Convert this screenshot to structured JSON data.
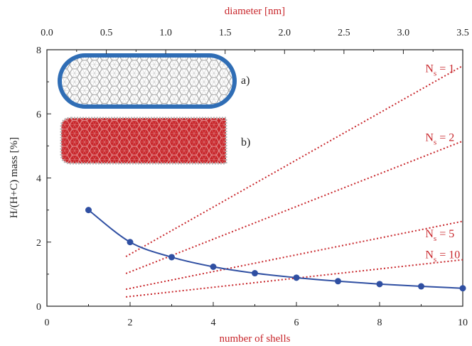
{
  "chart_data": {
    "type": "line",
    "xlabel": "number of shells",
    "ylabel": "H/(H+C) mass [%]",
    "x2label": "diameter [nm]",
    "xlim": [
      0,
      10
    ],
    "ylim": [
      0,
      8
    ],
    "x2lim": [
      0,
      3.5
    ],
    "xticks": [
      "0",
      "2",
      "4",
      "6",
      "8",
      "10"
    ],
    "yticks": [
      "0",
      "2",
      "4",
      "6",
      "8"
    ],
    "x2ticks": [
      "0.0",
      "0.5",
      "1.0",
      "1.5",
      "2.0",
      "2.5",
      "3.0",
      "3.5"
    ],
    "grid": false,
    "series": [
      {
        "name": "",
        "style": "solid-with-markers",
        "color": "#2f4fa2",
        "x": [
          1,
          2,
          3,
          4,
          5,
          6,
          7,
          8,
          9,
          10
        ],
        "y": [
          3.0,
          2.0,
          1.53,
          1.23,
          1.03,
          0.89,
          0.78,
          0.69,
          0.62,
          0.56
        ]
      },
      {
        "name": "Ns = 1",
        "style": "dotted",
        "color": "#c8262b",
        "x": [
          1.9,
          10
        ],
        "y": [
          1.55,
          7.5
        ]
      },
      {
        "name": "Ns = 2",
        "style": "dotted",
        "color": "#c8262b",
        "x": [
          1.9,
          10
        ],
        "y": [
          1.02,
          5.15
        ]
      },
      {
        "name": "Ns = 5",
        "style": "dotted",
        "color": "#c8262b",
        "x": [
          1.9,
          10
        ],
        "y": [
          0.53,
          2.65
        ]
      },
      {
        "name": "Ns = 10",
        "style": "dotted",
        "color": "#c8262b",
        "x": [
          1.9,
          10
        ],
        "y": [
          0.29,
          1.45
        ]
      }
    ],
    "annotations": [
      {
        "base": "N",
        "sub": "s",
        "rest": " = 1",
        "x": 9.1,
        "y": 7.3
      },
      {
        "base": "N",
        "sub": "s",
        "rest": " = 2",
        "x": 9.1,
        "y": 5.15
      },
      {
        "base": "N",
        "sub": "s",
        "rest": " = 5",
        "x": 9.1,
        "y": 2.15
      },
      {
        "base": "N",
        "sub": "s",
        "rest": " = 10",
        "x": 9.1,
        "y": 1.5
      }
    ],
    "insets": [
      {
        "label": "a)",
        "fill": "#ffffff",
        "border": "#2f6db5"
      },
      {
        "label": "b)",
        "fill": "#c8262b",
        "border": "#bbbbbb"
      }
    ]
  }
}
